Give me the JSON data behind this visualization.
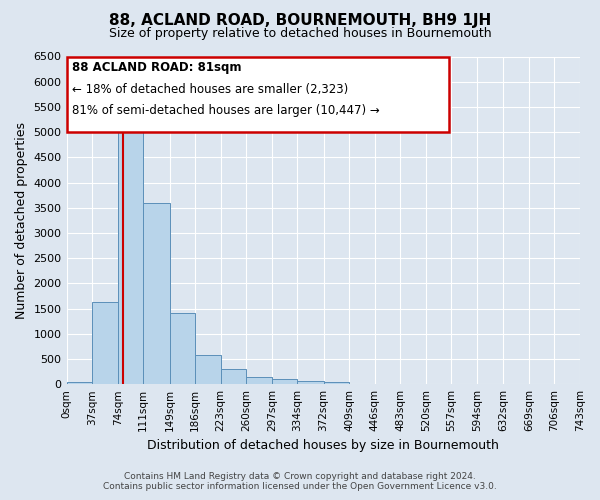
{
  "title": "88, ACLAND ROAD, BOURNEMOUTH, BH9 1JH",
  "subtitle": "Size of property relative to detached houses in Bournemouth",
  "xlabel": "Distribution of detached houses by size in Bournemouth",
  "ylabel": "Number of detached properties",
  "bar_values": [
    50,
    1630,
    5080,
    3600,
    1420,
    580,
    300,
    150,
    100,
    60,
    40,
    0,
    0,
    0,
    0,
    0,
    0,
    0,
    0,
    0
  ],
  "bin_edges": [
    0,
    37,
    74,
    111,
    149,
    186,
    223,
    260,
    297,
    334,
    372,
    409,
    446,
    483,
    520,
    557,
    594,
    632,
    669,
    706,
    743
  ],
  "bar_color": "#b8d4ea",
  "bar_edge_color": "#5b8fb9",
  "vertical_line_x": 81,
  "vertical_line_color": "#cc0000",
  "ylim": [
    0,
    6500
  ],
  "yticks": [
    0,
    500,
    1000,
    1500,
    2000,
    2500,
    3000,
    3500,
    4000,
    4500,
    5000,
    5500,
    6000,
    6500
  ],
  "annotation_title": "88 ACLAND ROAD: 81sqm",
  "annotation_line1": "← 18% of detached houses are smaller (2,323)",
  "annotation_line2": "81% of semi-detached houses are larger (10,447) →",
  "annotation_box_color": "#ffffff",
  "annotation_box_edge": "#cc0000",
  "footer_line1": "Contains HM Land Registry data © Crown copyright and database right 2024.",
  "footer_line2": "Contains public sector information licensed under the Open Government Licence v3.0.",
  "background_color": "#dde6f0",
  "plot_bg_color": "#dde6f0",
  "grid_color": "#ffffff"
}
